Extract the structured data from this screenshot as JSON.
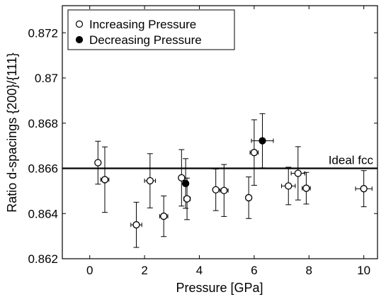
{
  "chart_data": {
    "type": "scatter",
    "xlabel": "Pressure [GPa]",
    "ylabel": "Ratio d-spacings {200}/{111}",
    "xlim": [
      -1,
      10.5
    ],
    "ylim": [
      0.862,
      0.8732
    ],
    "x_ticks": [
      0,
      2,
      4,
      6,
      8,
      10
    ],
    "x_tick_labels": [
      "0",
      "2",
      "4",
      "6",
      "8",
      "10"
    ],
    "y_ticks": [
      0.862,
      0.864,
      0.866,
      0.868,
      0.87,
      0.872
    ],
    "y_tick_labels": [
      "0.862",
      "0.864",
      "0.866",
      "0.868",
      "0.87",
      "0.872"
    ],
    "grid": false,
    "legend_position": "top-left",
    "reference_line": {
      "y": 0.866,
      "label": "Ideal fcc"
    },
    "series": [
      {
        "name": "Increasing Pressure",
        "marker": "open-circle",
        "points": [
          {
            "x": 0.3,
            "y": 0.86625,
            "yerr": 0.00095,
            "xerr": 0
          },
          {
            "x": 0.55,
            "y": 0.8655,
            "yerr": 0.00145,
            "xerr": 0.15
          },
          {
            "x": 1.7,
            "y": 0.8635,
            "yerr": 0.001,
            "xerr": 0.2
          },
          {
            "x": 2.2,
            "y": 0.86545,
            "yerr": 0.0012,
            "xerr": 0.2
          },
          {
            "x": 2.7,
            "y": 0.86388,
            "yerr": 0.0009,
            "xerr": 0.15
          },
          {
            "x": 3.35,
            "y": 0.86558,
            "yerr": 0.00125,
            "xerr": 0.1
          },
          {
            "x": 3.55,
            "y": 0.86465,
            "yerr": 0.00092,
            "xerr": 0.12
          },
          {
            "x": 4.6,
            "y": 0.86505,
            "yerr": 0.00092,
            "xerr": 0
          },
          {
            "x": 4.9,
            "y": 0.86502,
            "yerr": 0.00115,
            "xerr": 0.15
          },
          {
            "x": 5.8,
            "y": 0.8647,
            "yerr": 0.00092,
            "xerr": 0
          },
          {
            "x": 6.0,
            "y": 0.8667,
            "yerr": 0.00145,
            "xerr": 0.15
          },
          {
            "x": 7.25,
            "y": 0.86522,
            "yerr": 0.00083,
            "xerr": 0.25
          },
          {
            "x": 7.6,
            "y": 0.86578,
            "yerr": 0.00118,
            "xerr": 0.25
          },
          {
            "x": 7.9,
            "y": 0.86512,
            "yerr": 0.0007,
            "xerr": 0.15
          },
          {
            "x": 10.0,
            "y": 0.8651,
            "yerr": 0.0008,
            "xerr": 0.3
          }
        ]
      },
      {
        "name": "Decreasing Pressure",
        "marker": "filled-circle",
        "points": [
          {
            "x": 3.5,
            "y": 0.86533,
            "yerr": 0.0011,
            "xerr": 0
          },
          {
            "x": 6.3,
            "y": 0.86722,
            "yerr": 0.0012,
            "xerr": 0.4
          }
        ]
      }
    ]
  }
}
